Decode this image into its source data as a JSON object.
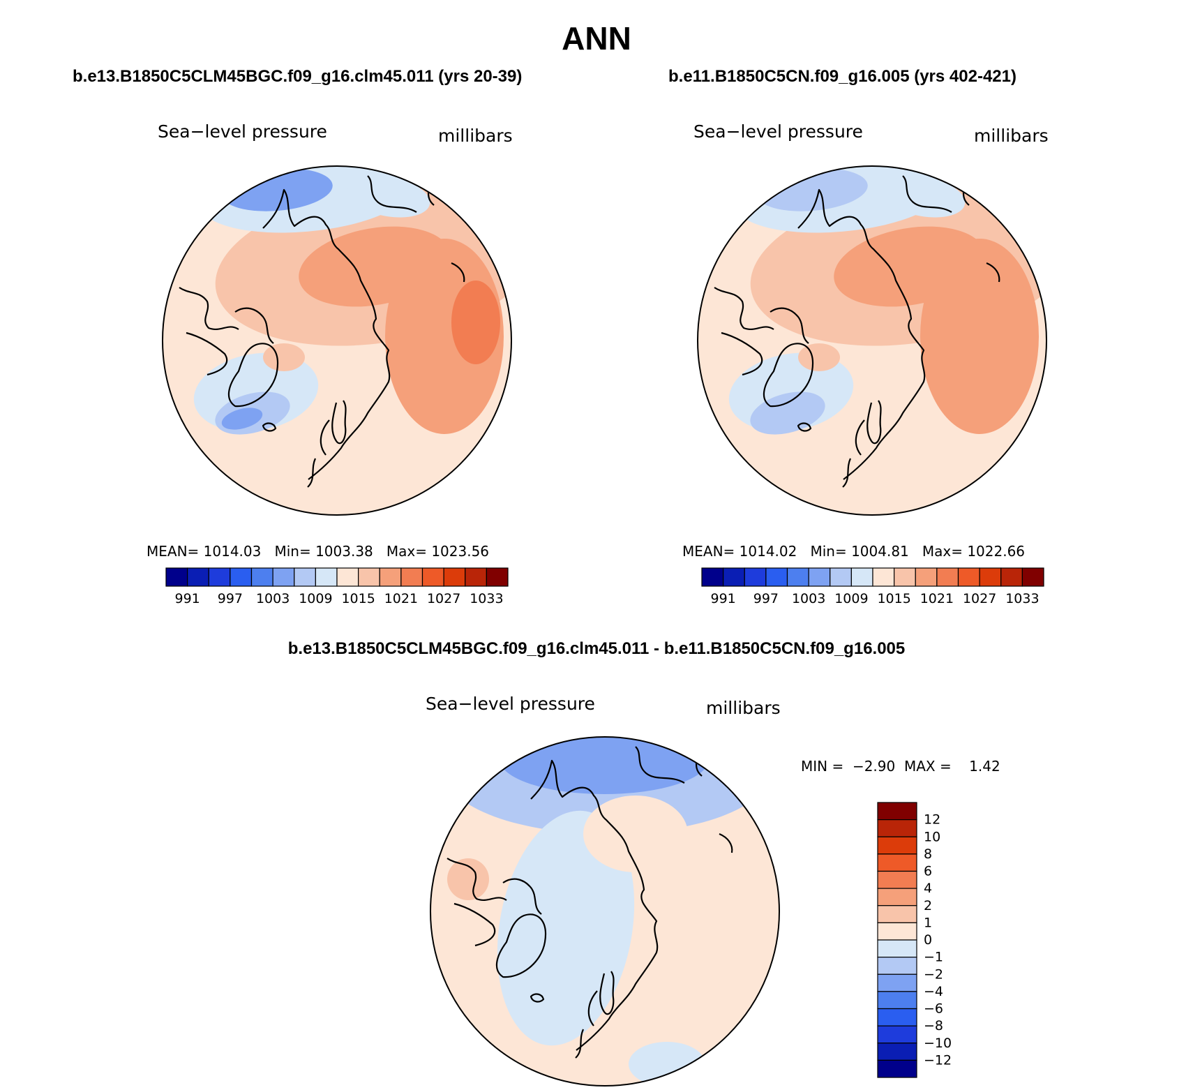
{
  "page": {
    "title": "ANN",
    "diff_title": "b.e13.B1850C5CLM45BGC.f09_g16.clm45.011 - b.e11.B1850C5CN.f09_g16.005"
  },
  "colors": {
    "palette": [
      "#00008b",
      "#0a1eb4",
      "#1e3cdc",
      "#2a5ef0",
      "#4d7fef",
      "#7ea2f2",
      "#b3c9f4",
      "#d6e7f7",
      "#fde6d6",
      "#f8c4aa",
      "#f5a07a",
      "#f27d52",
      "#ee5a28",
      "#dc3c0a",
      "#b92508",
      "#800000"
    ],
    "coast": "#000000"
  },
  "chart_data": [
    {
      "type": "heatmap",
      "projection": "north-polar-stereographic",
      "case": "b.e13.B1850C5CLM45BGC.f09_g16.clm45.011 (yrs 20-39)",
      "left_label": "Sea−level pressure",
      "right_label": "millibars",
      "stats": {
        "mean_label": "MEAN=",
        "mean": "1014.03",
        "min_label": "Min=",
        "min": "1003.38",
        "max_label": "Max=",
        "max": "1023.56"
      },
      "colorbar": {
        "orientation": "horizontal",
        "levels": [
          988,
          991,
          994,
          997,
          1000,
          1003,
          1006,
          1009,
          1012,
          1015,
          1018,
          1021,
          1024,
          1027,
          1030,
          1033
        ],
        "tick_labels": [
          "991",
          "997",
          "1003",
          "1009",
          "1015",
          "1021",
          "1027",
          "1033"
        ]
      }
    },
    {
      "type": "heatmap",
      "projection": "north-polar-stereographic",
      "case": "b.e11.B1850C5CN.f09_g16.005 (yrs 402-421)",
      "left_label": "Sea−level pressure",
      "right_label": "millibars",
      "stats": {
        "mean_label": "MEAN=",
        "mean": "1014.02",
        "min_label": "Min=",
        "min": "1004.81",
        "max_label": "Max=",
        "max": "1022.66"
      },
      "colorbar": {
        "orientation": "horizontal",
        "levels": [
          988,
          991,
          994,
          997,
          1000,
          1003,
          1006,
          1009,
          1012,
          1015,
          1018,
          1021,
          1024,
          1027,
          1030,
          1033
        ],
        "tick_labels": [
          "991",
          "997",
          "1003",
          "1009",
          "1015",
          "1021",
          "1027",
          "1033"
        ]
      }
    },
    {
      "type": "heatmap",
      "projection": "north-polar-stereographic",
      "case": "difference",
      "left_label": "Sea−level pressure",
      "right_label": "millibars",
      "stats": {
        "min_label": "MIN =",
        "min": "−2.90",
        "max_label": "MAX =",
        "max": "1.42"
      },
      "colorbar": {
        "orientation": "vertical",
        "tick_labels": [
          "12",
          "10",
          "8",
          "6",
          "4",
          "2",
          "1",
          "0",
          "−1",
          "−2",
          "−4",
          "−6",
          "−8",
          "−10",
          "−12"
        ]
      }
    }
  ]
}
